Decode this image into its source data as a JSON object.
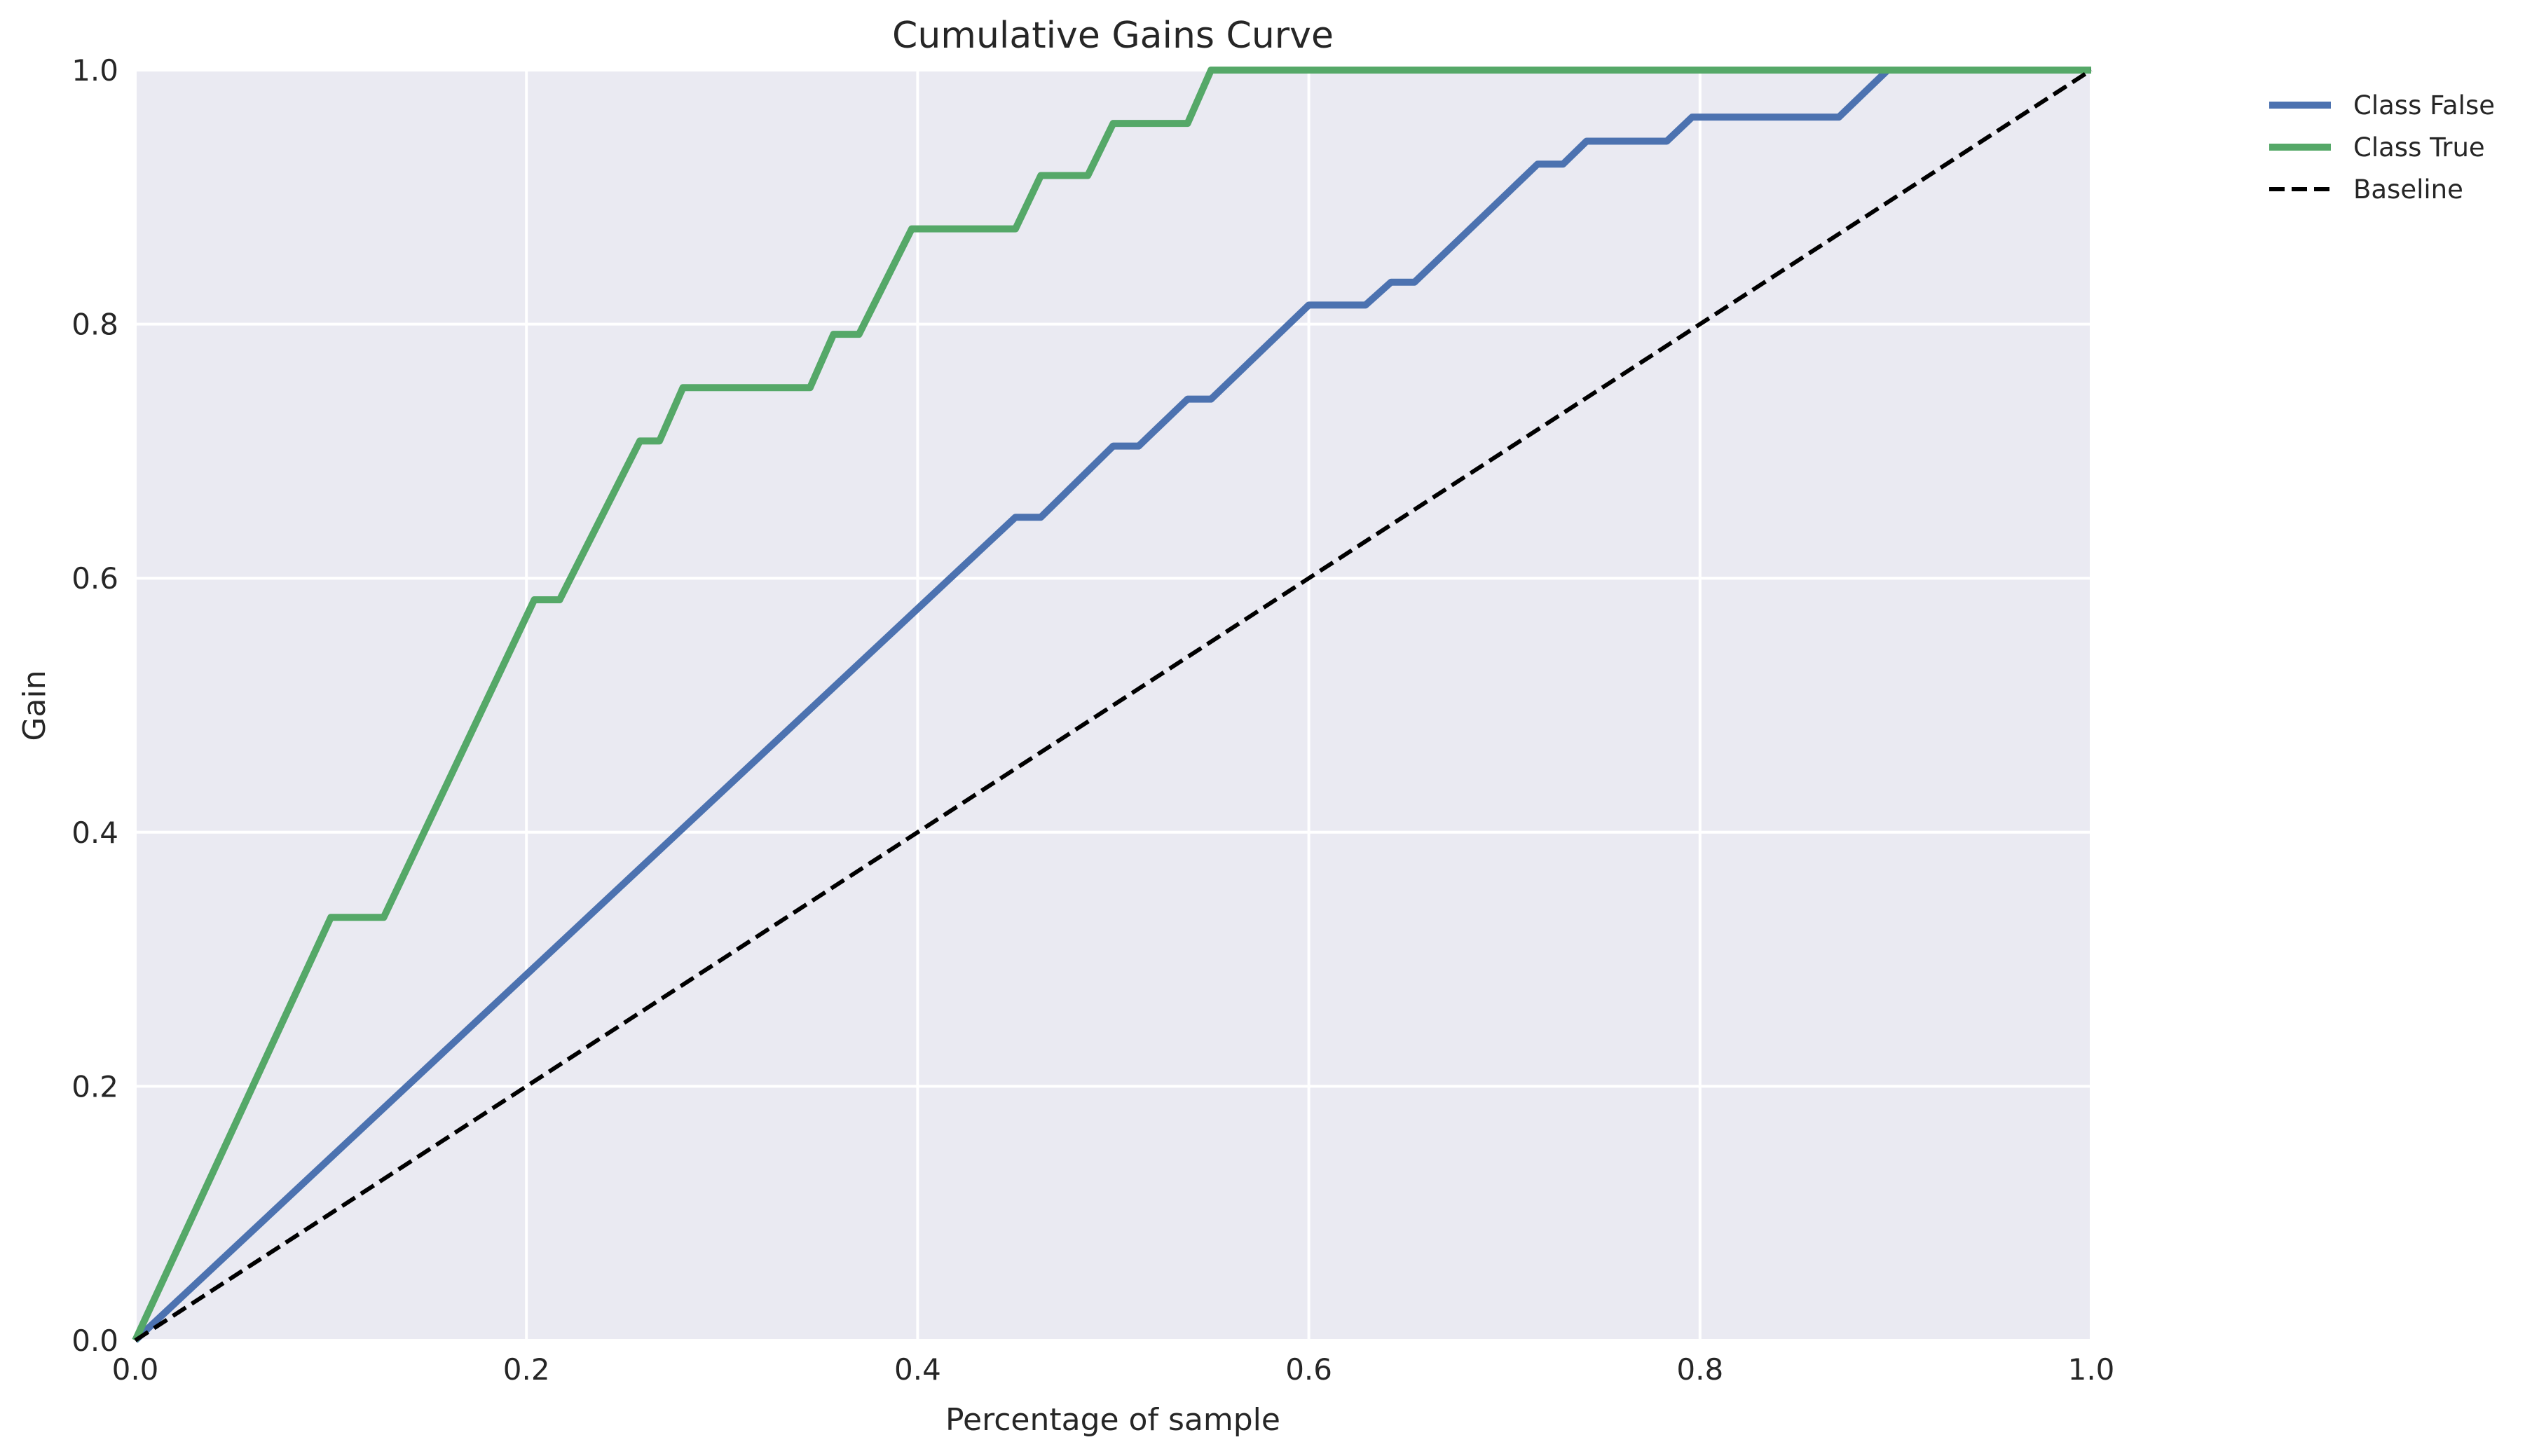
{
  "chart_data": {
    "type": "line",
    "title": "Cumulative Gains Curve",
    "xlabel": "Percentage of sample",
    "ylabel": "Gain",
    "xlim": [
      0.0,
      1.0
    ],
    "ylim": [
      0.0,
      1.0
    ],
    "xticks": [
      "0.0",
      "0.2",
      "0.4",
      "0.6",
      "0.8",
      "1.0"
    ],
    "yticks": [
      "0.0",
      "0.2",
      "0.4",
      "0.6",
      "0.8",
      "1.0"
    ],
    "grid": true,
    "legend_position": "outside-top-right",
    "series": [
      {
        "name": "Class False",
        "color": "#4c72b0",
        "style": "solid",
        "x": [
          0.0,
          0.45,
          0.463,
          0.5,
          0.513,
          0.538,
          0.55,
          0.6,
          0.629,
          0.642,
          0.654,
          0.717,
          0.73,
          0.742,
          0.783,
          0.796,
          0.871,
          0.896,
          1.0
        ],
        "y": [
          0.0,
          0.648,
          0.648,
          0.704,
          0.704,
          0.741,
          0.741,
          0.815,
          0.815,
          0.833,
          0.833,
          0.926,
          0.926,
          0.944,
          0.944,
          0.963,
          0.963,
          1.0,
          1.0
        ]
      },
      {
        "name": "Class True",
        "color": "#55a868",
        "style": "solid",
        "x": [
          0.0,
          0.1,
          0.127,
          0.204,
          0.217,
          0.258,
          0.268,
          0.28,
          0.345,
          0.357,
          0.37,
          0.397,
          0.45,
          0.463,
          0.487,
          0.5,
          0.538,
          0.55,
          1.0
        ],
        "y": [
          0.0,
          0.333,
          0.333,
          0.583,
          0.583,
          0.708,
          0.708,
          0.75,
          0.75,
          0.792,
          0.792,
          0.875,
          0.875,
          0.917,
          0.917,
          0.958,
          0.958,
          1.0,
          1.0
        ]
      },
      {
        "name": "Baseline",
        "color": "#000000",
        "style": "dashed",
        "x": [
          0.0,
          1.0
        ],
        "y": [
          0.0,
          1.0
        ]
      }
    ]
  }
}
